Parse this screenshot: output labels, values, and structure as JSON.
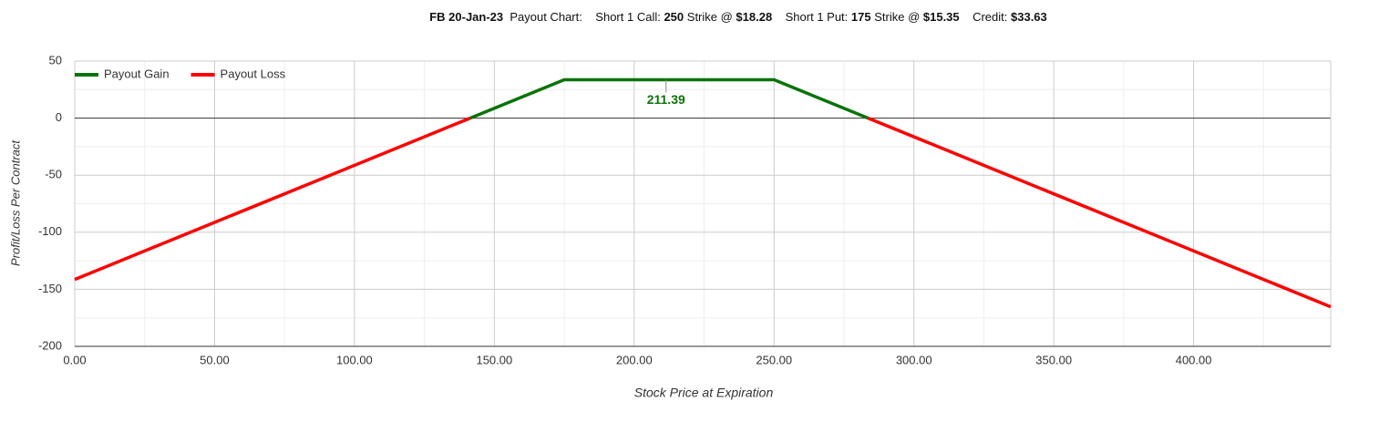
{
  "chart_data": {
    "type": "line",
    "title_parts": [
      {
        "text": "FB 20-Jan-23",
        "bold": true
      },
      {
        "text": "  Payout Chart:    Short 1 Call: ",
        "bold": false
      },
      {
        "text": "250",
        "bold": true
      },
      {
        "text": " Strike @ ",
        "bold": false
      },
      {
        "text": "$18.28",
        "bold": true
      },
      {
        "text": "    Short 1 Put: ",
        "bold": false
      },
      {
        "text": "175",
        "bold": true
      },
      {
        "text": " Strike @ ",
        "bold": false
      },
      {
        "text": "$15.35",
        "bold": true
      },
      {
        "text": "    Credit: ",
        "bold": false
      },
      {
        "text": "$33.63",
        "bold": true
      }
    ],
    "x_label": "Stock Price at Expiration",
    "y_label": "Profit/Loss Per Contract",
    "xlim": [
      0,
      449
    ],
    "ylim": [
      -200,
      50
    ],
    "xticks": [
      {
        "value": 0,
        "label": "0.00"
      },
      {
        "value": 50,
        "label": "50.00"
      },
      {
        "value": 100,
        "label": "100.00"
      },
      {
        "value": 150,
        "label": "150.00"
      },
      {
        "value": 200,
        "label": "200.00"
      },
      {
        "value": 250,
        "label": "250.00"
      },
      {
        "value": 300,
        "label": "300.00"
      },
      {
        "value": 350,
        "label": "350.00"
      },
      {
        "value": 400,
        "label": "400.00"
      }
    ],
    "yticks": [
      50,
      0,
      -50,
      -100,
      -150,
      -200
    ],
    "xminor": [
      25,
      75,
      125,
      175,
      225,
      275,
      325,
      375,
      425
    ],
    "yminor": [
      25,
      -25,
      -75,
      -125,
      -175
    ],
    "grid": true,
    "legend": "top-left",
    "series": [
      {
        "name": "Payout Gain",
        "color": "#0a730a",
        "x": [
          141.37,
          175,
          250,
          283.63
        ],
        "values": [
          0,
          33.63,
          33.63,
          0
        ]
      },
      {
        "name": "Payout Loss",
        "color": "#ff0000",
        "x": [
          0,
          141.37,
          null,
          283.63,
          449
        ],
        "values": [
          -141.37,
          0,
          null,
          0,
          -165.37
        ]
      }
    ],
    "annotation": {
      "x": 211.39,
      "y": 33.63,
      "color": "#0a730a"
    }
  }
}
